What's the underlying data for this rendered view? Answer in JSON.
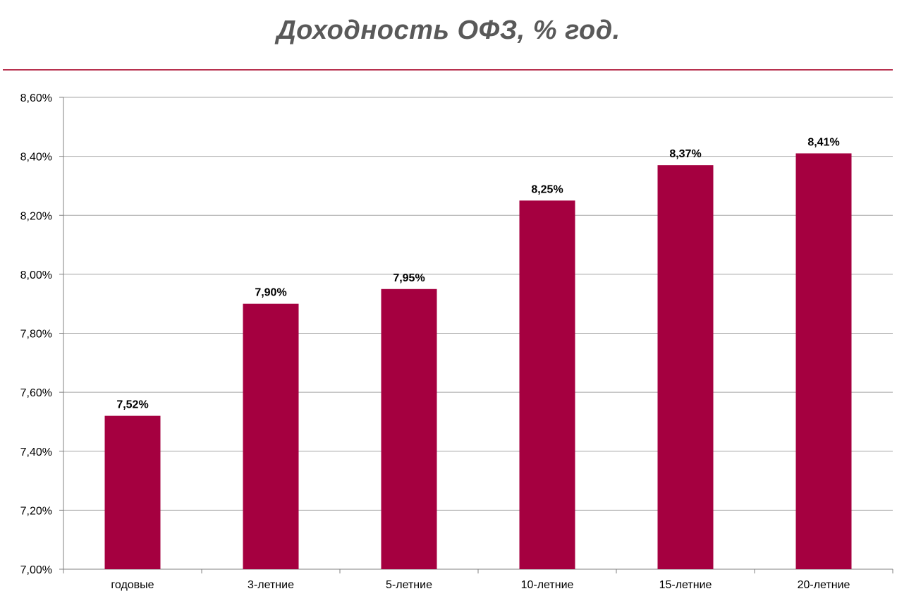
{
  "chart_data": {
    "type": "bar",
    "title": "Доходность ОФЗ, % год.",
    "xlabel": "",
    "ylabel": "",
    "categories": [
      "годовые",
      "3-летние",
      "5-летние",
      "10-летние",
      "15-летние",
      "20-летние"
    ],
    "values": [
      7.52,
      7.9,
      7.95,
      8.25,
      8.37,
      8.41
    ],
    "data_labels": [
      "7,52%",
      "7,90%",
      "7,95%",
      "8,25%",
      "8,37%",
      "8,41%"
    ],
    "ylim": [
      7.0,
      8.6
    ],
    "yticks": [
      7.0,
      7.2,
      7.4,
      7.6,
      7.8,
      8.0,
      8.2,
      8.4,
      8.6
    ],
    "ytick_labels": [
      "7,00%",
      "7,20%",
      "7,40%",
      "7,60%",
      "7,80%",
      "8,00%",
      "8,20%",
      "8,40%",
      "8,60%"
    ],
    "grid": true,
    "legend": "none",
    "colors": {
      "bar": "#a50040",
      "title": "#595959",
      "divider": "#b8324f",
      "grid": "#a6a6a6",
      "axis": "#808080"
    }
  }
}
